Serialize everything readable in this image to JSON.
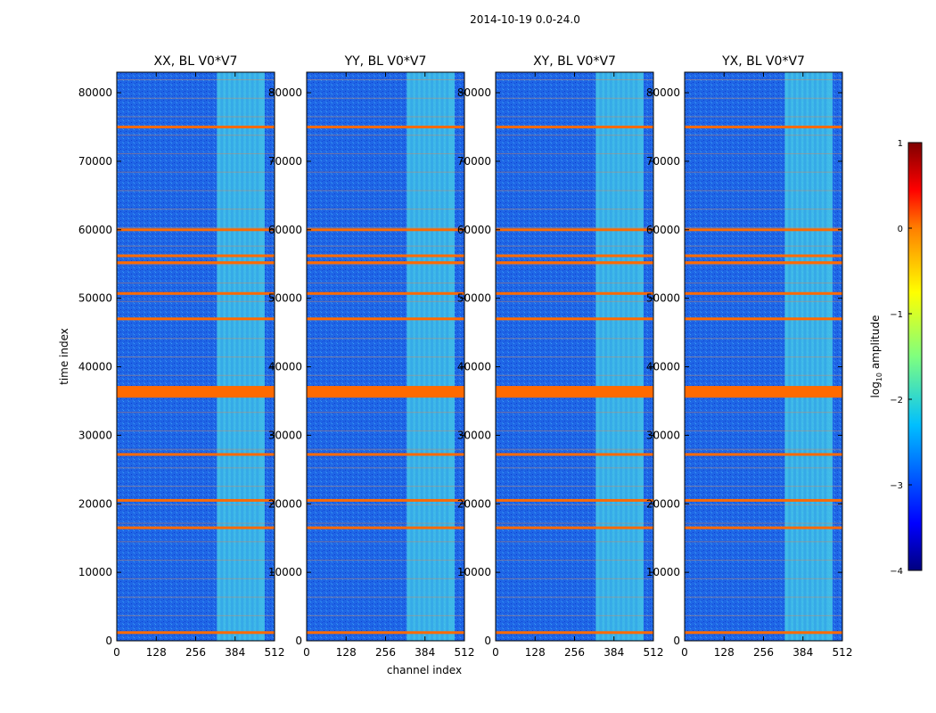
{
  "chart_data": {
    "type": "heatmap",
    "suptitle": "2014-10-19 0.0-24.0",
    "xlabel": "channel index",
    "ylabel": "time index",
    "xlim": [
      0,
      512
    ],
    "ylim": [
      0,
      83000
    ],
    "xticks": [
      "0",
      "128",
      "256",
      "384",
      "512"
    ],
    "yticks": [
      "0",
      "10000",
      "20000",
      "30000",
      "40000",
      "50000",
      "60000",
      "70000",
      "80000"
    ],
    "panels": [
      {
        "title": "XX, BL V0*V7",
        "bright_band": [
          325,
          480
        ]
      },
      {
        "title": "YY, BL V0*V7",
        "bright_band": [
          325,
          480
        ]
      },
      {
        "title": "XY, BL V0*V7",
        "bright_band": [
          325,
          480
        ]
      },
      {
        "title": "YX, BL V0*V7",
        "bright_band": [
          325,
          480
        ]
      }
    ],
    "flagged_rows_time_index": [
      1200,
      16500,
      20500,
      27200,
      36500,
      47000,
      50700,
      55200,
      56200,
      60000,
      75000
    ],
    "flagged_block_time_index": [
      35500,
      37200
    ],
    "colorbar": {
      "label": "log10 amplitude",
      "label_main": "log",
      "label_sub": "10",
      "label_rest": " amplitude",
      "range": [
        -4,
        1
      ],
      "ticks": [
        "1",
        "0",
        "−1",
        "−2",
        "−3",
        "−4"
      ]
    }
  },
  "colors": {
    "background": "#1a5fe0",
    "band": "#45c8e8",
    "flag": "#ff6a00"
  }
}
